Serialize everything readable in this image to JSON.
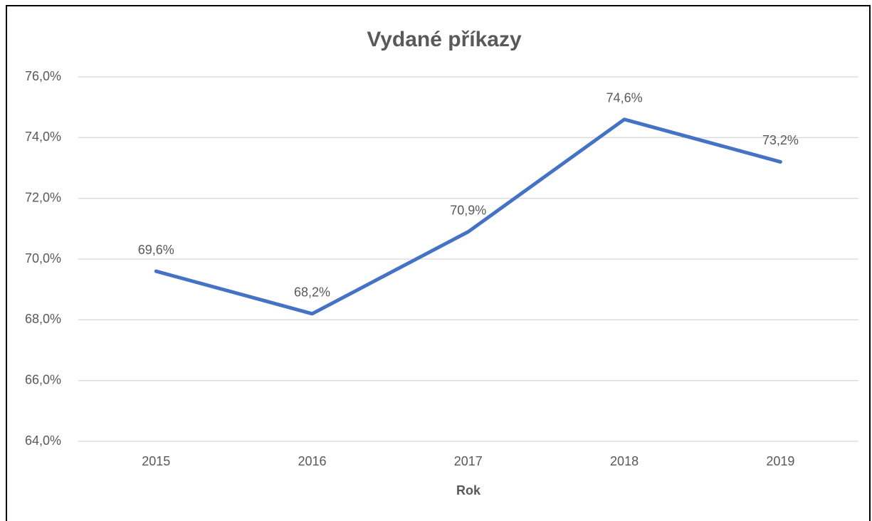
{
  "chart_data": {
    "type": "line",
    "title": "Vydané příkazy",
    "x_label": "Rok",
    "categories": [
      "2015",
      "2016",
      "2017",
      "2018",
      "2019"
    ],
    "series": [
      {
        "name": "Vydané příkazy",
        "color": "#4472c4",
        "values": [
          69.6,
          68.2,
          70.9,
          74.6,
          73.2
        ],
        "value_labels": [
          "69,6%",
          "68,2%",
          "70,9%",
          "74,6%",
          "73,2%"
        ]
      }
    ],
    "ylim": [
      64,
      76
    ],
    "yticks": [
      {
        "value": 64,
        "label": "64,0%"
      },
      {
        "value": 66,
        "label": "66,0%"
      },
      {
        "value": 68,
        "label": "68,0%"
      },
      {
        "value": 70,
        "label": "70,0%"
      },
      {
        "value": 72,
        "label": "72,0%"
      },
      {
        "value": 74,
        "label": "74,0%"
      },
      {
        "value": 76,
        "label": "76,0%"
      }
    ],
    "grid": true
  }
}
